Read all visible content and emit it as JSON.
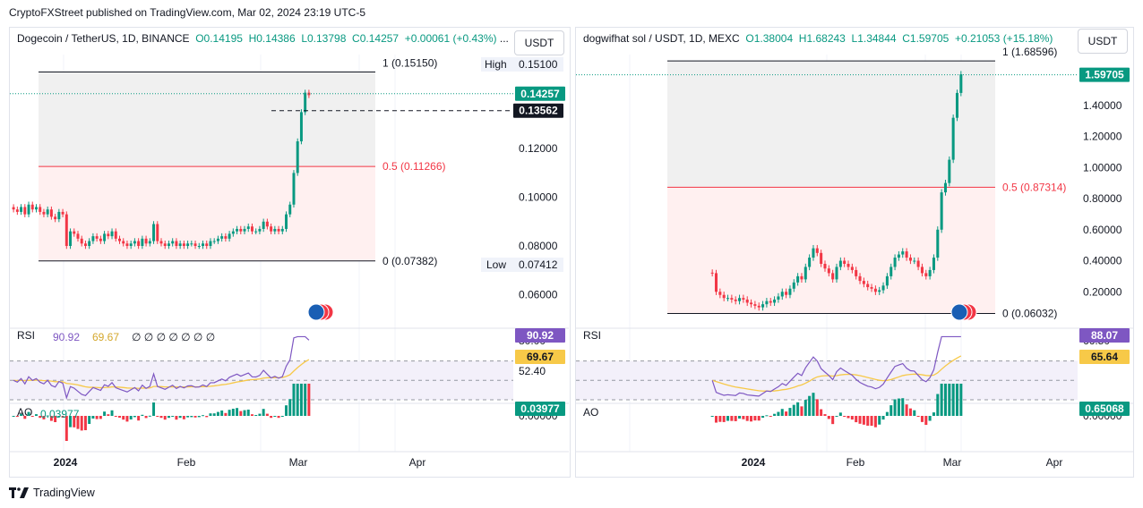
{
  "header": "CryptoFXStreet published on TradingView.com, Mar 02, 2024 23:19 UTC-5",
  "footer": "TradingView",
  "colors": {
    "up": "#089981",
    "down": "#f23645",
    "rsi": "#7e57c2",
    "rsi_ma": "#f7c948",
    "grid": "#f0f3fa",
    "fib_mid": "#f23645",
    "zone_top": "#f0f0f0",
    "zone_bottom": "#fff0f0"
  },
  "left": {
    "legend_title": "Dogecoin / TetherUS, 1D, BINANCE",
    "open": "O0.14195",
    "high": "H0.14386",
    "low": "L0.13798",
    "close": "C0.14257",
    "change": "+0.00061 (+0.43%)",
    "legend_more": "...",
    "currency": "USDT",
    "yticks": [
      "0.12000",
      "0.10000",
      "0.08000",
      "0.06000"
    ],
    "high_label": "High",
    "high_value": "0.15100",
    "low_label": "Low",
    "low_value": "0.07412",
    "price_label": "0.14257",
    "dash_label": "0.13562",
    "fib_1": "1 (0.15150)",
    "fib_05": "0.5 (0.11266)",
    "fib_0": "0 (0.07382)",
    "rsi_label": "RSI",
    "rsi_value": "90.92",
    "rsi_ma": "69.67",
    "rsi_extra": "∅ ∅ ∅ ∅ ∅ ∅ ∅",
    "rsi_ticks": [
      "80.00",
      "66.45",
      "52.40"
    ],
    "rsi_badge": "90.92",
    "rsi_ma_badge": "69.67",
    "ao_label": "AO",
    "ao_value": "0.03977",
    "ao_tick": "0.00000",
    "ao_badge": "0.03977",
    "xticks": [
      "2024",
      "Feb",
      "Mar",
      "Apr"
    ]
  },
  "right": {
    "legend_title": "dogwifhat sol / USDT, 1D, MEXC",
    "open": "O1.38004",
    "high": "H1.68243",
    "low": "L1.34844",
    "close": "C1.59705",
    "change": "+0.21053 (+15.18%)",
    "currency": "USDT",
    "yticks": [
      "1.60000",
      "1.40000",
      "1.20000",
      "1.00000",
      "0.80000",
      "0.60000",
      "0.40000",
      "0.20000"
    ],
    "price_label": "1.59705",
    "fib_1": "1 (1.68596)",
    "fib_05": "0.5 (0.87314)",
    "fib_0": "0 (0.06032)",
    "rsi_label": "RSI",
    "rsi_ticks": [
      "66.50",
      "46.80"
    ],
    "rsi_badge": "88.07",
    "rsi_ma_badge": "65.64",
    "ao_label": "AO",
    "ao_tick": "0.00000",
    "ao_badge": "0.65068",
    "xticks": [
      "2024",
      "Feb",
      "Mar",
      "Apr"
    ]
  },
  "chart_data": [
    {
      "type": "candlestick",
      "title": "Dogecoin / TetherUS, 1D, BINANCE",
      "y_range": [
        0.055,
        0.155
      ],
      "fib_levels": [
        {
          "level": "1",
          "price": 0.1515
        },
        {
          "level": "0.5",
          "price": 0.11266
        },
        {
          "level": "0",
          "price": 0.07382
        }
      ],
      "close_series_approx": [
        0.095,
        0.094,
        0.096,
        0.093,
        0.097,
        0.095,
        0.096,
        0.094,
        0.093,
        0.095,
        0.092,
        0.091,
        0.094,
        0.093,
        0.08,
        0.086,
        0.085,
        0.083,
        0.081,
        0.08,
        0.082,
        0.084,
        0.083,
        0.082,
        0.085,
        0.084,
        0.086,
        0.083,
        0.082,
        0.081,
        0.08,
        0.081,
        0.082,
        0.08,
        0.083,
        0.081,
        0.082,
        0.089,
        0.082,
        0.081,
        0.08,
        0.081,
        0.082,
        0.08,
        0.081,
        0.08,
        0.081,
        0.081,
        0.08,
        0.08,
        0.081,
        0.08,
        0.082,
        0.082,
        0.083,
        0.084,
        0.083,
        0.085,
        0.086,
        0.087,
        0.086,
        0.087,
        0.088,
        0.086,
        0.086,
        0.087,
        0.09,
        0.088,
        0.086,
        0.087,
        0.086,
        0.087,
        0.093,
        0.097,
        0.11,
        0.123,
        0.135,
        0.143,
        0.142
      ],
      "price": 0.14257
    },
    {
      "type": "candlestick",
      "title": "dogwifhat sol / USDT, 1D, MEXC",
      "y_range": [
        0.0,
        1.75
      ],
      "fib_levels": [
        {
          "level": "1",
          "price": 1.68596
        },
        {
          "level": "0.5",
          "price": 0.87314
        },
        {
          "level": "0",
          "price": 0.06032
        }
      ],
      "close_series_approx": [
        0.32,
        0.2,
        0.18,
        0.16,
        0.16,
        0.15,
        0.14,
        0.16,
        0.15,
        0.13,
        0.12,
        0.11,
        0.1,
        0.12,
        0.14,
        0.13,
        0.15,
        0.17,
        0.2,
        0.18,
        0.22,
        0.26,
        0.3,
        0.28,
        0.36,
        0.42,
        0.48,
        0.45,
        0.38,
        0.35,
        0.32,
        0.28,
        0.36,
        0.4,
        0.38,
        0.36,
        0.34,
        0.3,
        0.27,
        0.25,
        0.23,
        0.22,
        0.2,
        0.21,
        0.24,
        0.3,
        0.36,
        0.42,
        0.44,
        0.46,
        0.42,
        0.4,
        0.4,
        0.36,
        0.32,
        0.3,
        0.34,
        0.42,
        0.6,
        0.84,
        0.9,
        1.05,
        1.32,
        1.48,
        1.6
      ],
      "price": 1.59705
    }
  ]
}
